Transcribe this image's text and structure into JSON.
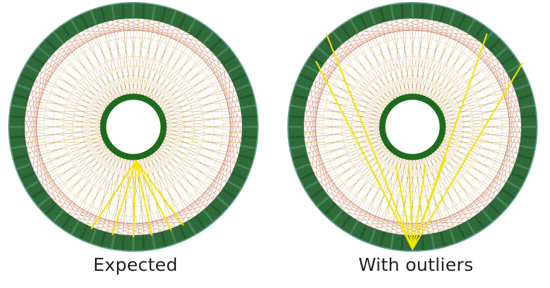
{
  "panels": [
    {
      "caption": "Expected",
      "highlight_lines": 6,
      "highlight_mode": "converging-near-inner-ring"
    },
    {
      "caption": "With outliers",
      "highlight_lines": 8,
      "highlight_mode": "fan-from-outer-bottom"
    }
  ],
  "colors": {
    "ring": "#2f6b3a",
    "ring_dark": "#1f4a26",
    "mesh_red": "#b5442a",
    "mesh_gold": "#c9a227",
    "highlight": "#f2e600",
    "background": "#ffffff"
  }
}
